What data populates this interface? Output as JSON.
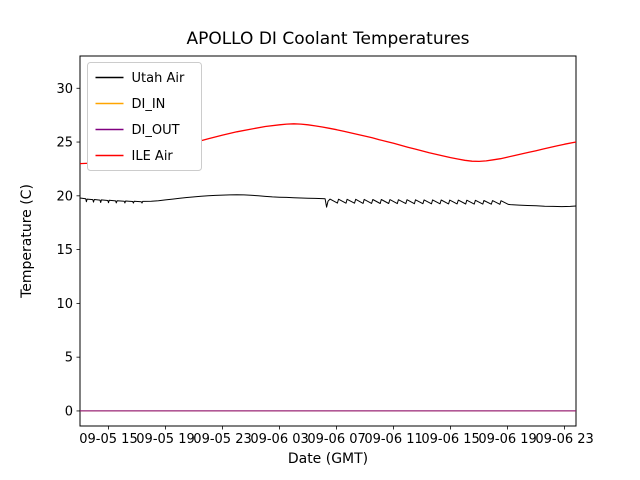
{
  "figure": {
    "background": "#ffffff"
  },
  "chart_data": {
    "type": "line",
    "title": "APOLLO DI Coolant Temperatures",
    "xlabel": "Date (GMT)",
    "ylabel": "Temperature (C)",
    "xlim": [
      0,
      34.8
    ],
    "ylim": [
      -1.4,
      33
    ],
    "grid": false,
    "legend": {
      "position": "upper-left"
    },
    "y_ticks": [
      0,
      5,
      10,
      15,
      20,
      25,
      30
    ],
    "x_ticks": [
      {
        "pos": 2,
        "label": "09-05 15"
      },
      {
        "pos": 6,
        "label": "09-05 19"
      },
      {
        "pos": 10,
        "label": "09-05 23"
      },
      {
        "pos": 14,
        "label": "09-06 03"
      },
      {
        "pos": 18,
        "label": "09-06 07"
      },
      {
        "pos": 22,
        "label": "09-06 11"
      },
      {
        "pos": 26,
        "label": "09-06 15"
      },
      {
        "pos": 30,
        "label": "09-06 19"
      },
      {
        "pos": 34,
        "label": "09-06 23"
      }
    ],
    "series": [
      {
        "name": "Utah Air",
        "color": "#000000",
        "width": 1,
        "points": [
          [
            0,
            19.8
          ],
          [
            0.4,
            19.72
          ],
          [
            0.45,
            19.45
          ],
          [
            0.5,
            19.7
          ],
          [
            0.9,
            19.65
          ],
          [
            0.95,
            19.42
          ],
          [
            1.0,
            19.66
          ],
          [
            1.4,
            19.6
          ],
          [
            1.45,
            19.38
          ],
          [
            1.5,
            19.62
          ],
          [
            1.95,
            19.57
          ],
          [
            2.0,
            19.36
          ],
          [
            2.05,
            19.58
          ],
          [
            2.5,
            19.53
          ],
          [
            2.55,
            19.34
          ],
          [
            2.6,
            19.55
          ],
          [
            3.1,
            19.5
          ],
          [
            3.15,
            19.33
          ],
          [
            3.2,
            19.52
          ],
          [
            3.7,
            19.47
          ],
          [
            3.75,
            19.32
          ],
          [
            3.8,
            19.5
          ],
          [
            4.3,
            19.45
          ],
          [
            4.35,
            19.33
          ],
          [
            4.4,
            19.48
          ],
          [
            5,
            19.5
          ],
          [
            5.5,
            19.55
          ],
          [
            6,
            19.62
          ],
          [
            6.5,
            19.7
          ],
          [
            7,
            19.77
          ],
          [
            7.5,
            19.84
          ],
          [
            8,
            19.9
          ],
          [
            8.5,
            19.96
          ],
          [
            9,
            20.0
          ],
          [
            9.5,
            20.04
          ],
          [
            10,
            20.07
          ],
          [
            10.5,
            20.09
          ],
          [
            11,
            20.1
          ],
          [
            11.5,
            20.09
          ],
          [
            12,
            20.06
          ],
          [
            12.5,
            20.0
          ],
          [
            13,
            19.95
          ],
          [
            13.5,
            19.9
          ],
          [
            14,
            19.87
          ],
          [
            14.5,
            19.85
          ],
          [
            15,
            19.83
          ],
          [
            15.5,
            19.8
          ],
          [
            16,
            19.78
          ],
          [
            16.5,
            19.76
          ],
          [
            17,
            19.74
          ],
          [
            17.2,
            19.72
          ],
          [
            17.3,
            18.95
          ],
          [
            17.4,
            19.5
          ],
          [
            17.54,
            19.7
          ],
          [
            18.06,
            19.32
          ],
          [
            18.14,
            19.69
          ],
          [
            18.66,
            19.31
          ],
          [
            18.74,
            19.68
          ],
          [
            19.26,
            19.31
          ],
          [
            19.34,
            19.68
          ],
          [
            19.86,
            19.3
          ],
          [
            19.94,
            19.67
          ],
          [
            20.46,
            19.3
          ],
          [
            20.54,
            19.66
          ],
          [
            21.06,
            19.29
          ],
          [
            21.14,
            19.66
          ],
          [
            21.66,
            19.29
          ],
          [
            21.74,
            19.65
          ],
          [
            22.26,
            19.28
          ],
          [
            22.34,
            19.64
          ],
          [
            22.86,
            19.28
          ],
          [
            22.94,
            19.64
          ],
          [
            23.46,
            19.27
          ],
          [
            23.54,
            19.63
          ],
          [
            24.06,
            19.27
          ],
          [
            24.14,
            19.62
          ],
          [
            24.66,
            19.26
          ],
          [
            24.74,
            19.62
          ],
          [
            25.26,
            19.26
          ],
          [
            25.34,
            19.61
          ],
          [
            25.86,
            19.25
          ],
          [
            25.94,
            19.6
          ],
          [
            26.46,
            19.25
          ],
          [
            26.54,
            19.6
          ],
          [
            27.06,
            19.24
          ],
          [
            27.14,
            19.59
          ],
          [
            27.66,
            19.23
          ],
          [
            27.74,
            19.58
          ],
          [
            28.26,
            19.23
          ],
          [
            28.34,
            19.57
          ],
          [
            28.86,
            19.22
          ],
          [
            28.94,
            19.56
          ],
          [
            29.46,
            19.21
          ],
          [
            29.54,
            19.55
          ],
          [
            30.06,
            19.2
          ],
          [
            30.2,
            19.18
          ],
          [
            30.8,
            19.14
          ],
          [
            31.4,
            19.1
          ],
          [
            32,
            19.07
          ],
          [
            32.6,
            19.04
          ],
          [
            33.2,
            19.02
          ],
          [
            33.8,
            19.0
          ],
          [
            34.4,
            19.02
          ],
          [
            34.8,
            19.05
          ]
        ]
      },
      {
        "name": "DI_IN",
        "color": "#ffa500",
        "width": 1,
        "points": [
          [
            0,
            0
          ],
          [
            34.8,
            0
          ]
        ]
      },
      {
        "name": "DI_OUT",
        "color": "#800080",
        "width": 1,
        "points": [
          [
            0,
            0
          ],
          [
            34.8,
            0
          ]
        ]
      },
      {
        "name": "ILE Air",
        "color": "#ff0000",
        "width": 1.3,
        "points": [
          [
            0,
            23.0
          ],
          [
            1,
            23.05
          ],
          [
            2,
            23.15
          ],
          [
            3,
            23.35
          ],
          [
            4,
            23.6
          ],
          [
            5,
            23.9
          ],
          [
            6,
            24.25
          ],
          [
            7,
            24.6
          ],
          [
            8,
            24.95
          ],
          [
            9,
            25.3
          ],
          [
            10,
            25.65
          ],
          [
            11,
            25.95
          ],
          [
            12,
            26.2
          ],
          [
            13,
            26.45
          ],
          [
            14,
            26.6
          ],
          [
            14.5,
            26.67
          ],
          [
            15,
            26.7
          ],
          [
            15.5,
            26.67
          ],
          [
            16,
            26.6
          ],
          [
            16.5,
            26.5
          ],
          [
            17,
            26.4
          ],
          [
            17.5,
            26.28
          ],
          [
            18,
            26.15
          ],
          [
            18.5,
            26.0
          ],
          [
            19,
            25.85
          ],
          [
            19.5,
            25.7
          ],
          [
            20,
            25.55
          ],
          [
            20.5,
            25.4
          ],
          [
            21,
            25.22
          ],
          [
            21.5,
            25.05
          ],
          [
            22,
            24.88
          ],
          [
            22.5,
            24.7
          ],
          [
            23,
            24.52
          ],
          [
            23.5,
            24.35
          ],
          [
            24,
            24.18
          ],
          [
            24.5,
            24.0
          ],
          [
            25,
            23.85
          ],
          [
            25.5,
            23.7
          ],
          [
            26,
            23.55
          ],
          [
            26.5,
            23.42
          ],
          [
            27,
            23.3
          ],
          [
            27.5,
            23.22
          ],
          [
            28,
            23.2
          ],
          [
            28.5,
            23.25
          ],
          [
            29,
            23.35
          ],
          [
            29.5,
            23.45
          ],
          [
            30,
            23.6
          ],
          [
            30.5,
            23.75
          ],
          [
            31,
            23.9
          ],
          [
            31.5,
            24.05
          ],
          [
            32,
            24.2
          ],
          [
            32.5,
            24.35
          ],
          [
            33,
            24.5
          ],
          [
            33.5,
            24.65
          ],
          [
            34,
            24.8
          ],
          [
            34.8,
            25.0
          ]
        ]
      }
    ]
  }
}
